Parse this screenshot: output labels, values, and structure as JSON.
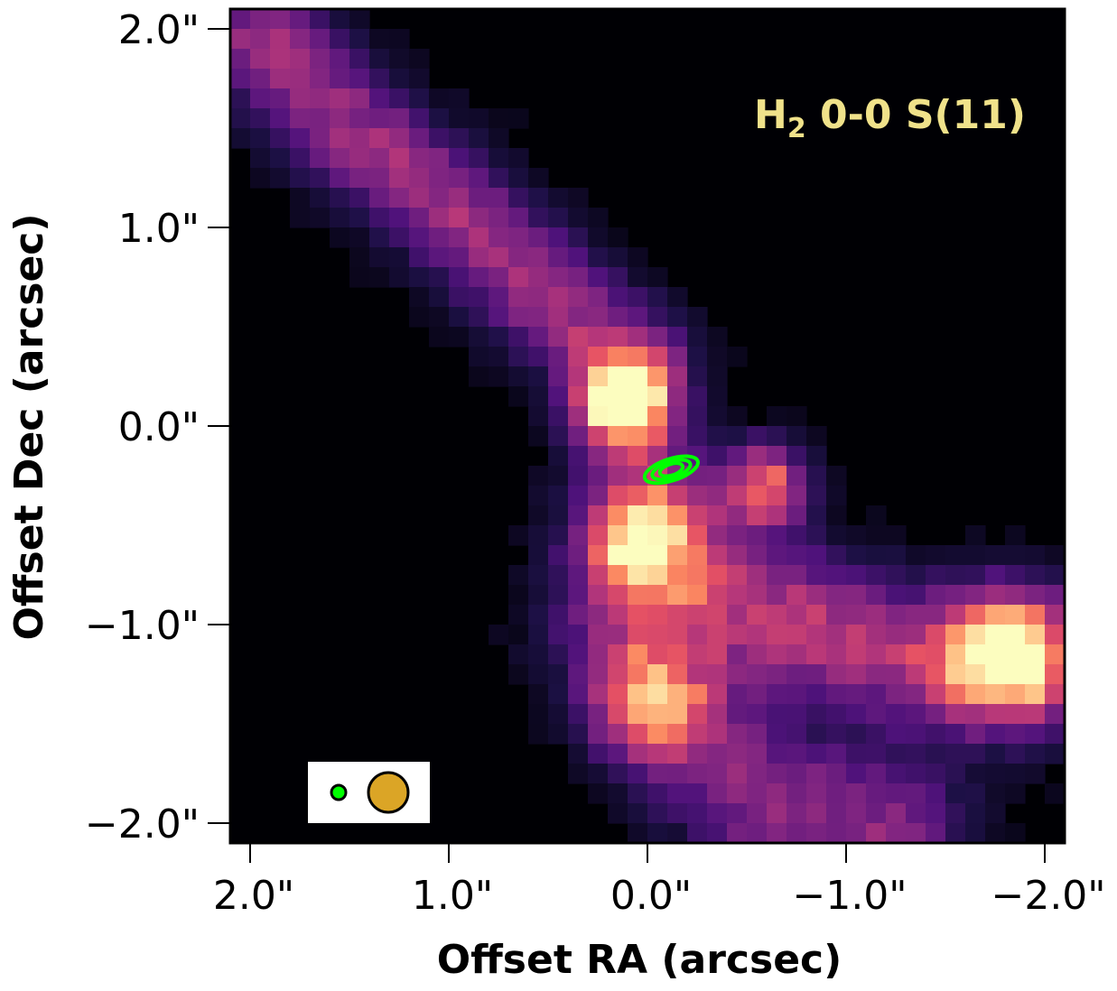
{
  "chart_data": {
    "type": "heatmap",
    "line_label": {
      "main": "H",
      "sub": "2",
      "rest": " 0-0 S(11)"
    },
    "xlabel": "Offset RA (arcsec)",
    "ylabel": "Offset Dec (arcsec)",
    "xlim": [
      2.1,
      -2.1
    ],
    "ylim": [
      -2.1,
      2.1
    ],
    "x_ticks": [
      2.0,
      1.0,
      0.0,
      -1.0,
      -2.0
    ],
    "x_tick_labels": [
      "2.0\"",
      "1.0\"",
      "0.0\"",
      "−1.0\"",
      "−2.0\""
    ],
    "y_ticks": [
      2.0,
      1.0,
      0.0,
      -1.0,
      -2.0
    ],
    "y_tick_labels": [
      "2.0\"",
      "1.0\"",
      "0.0\"",
      "−1.0\"",
      "−2.0\""
    ],
    "colormap": "magma",
    "grid": false,
    "emission_components": [
      {
        "name": "upper-outflow-lobe",
        "path": [
          [
            1.95,
            1.95
          ],
          [
            1.5,
            1.5
          ],
          [
            1.0,
            1.1
          ],
          [
            0.5,
            0.65
          ],
          [
            0.1,
            0.3
          ]
        ],
        "width": 0.42,
        "peak": 0.45
      },
      {
        "name": "lower-outflow-lobe",
        "path": [
          [
            0.0,
            -0.4
          ],
          [
            -0.3,
            -0.8
          ],
          [
            -0.8,
            -1.0
          ],
          [
            -1.3,
            -1.15
          ],
          [
            -1.9,
            -1.2
          ]
        ],
        "width": 0.5,
        "peak": 0.5
      },
      {
        "name": "lower-cavity",
        "path": [
          [
            0.1,
            -1.0
          ],
          [
            -0.2,
            -1.5
          ],
          [
            -0.6,
            -1.9
          ],
          [
            -1.2,
            -2.05
          ]
        ],
        "width": 0.55,
        "peak": 0.4
      },
      {
        "name": "central-knot",
        "center": [
          0.12,
          0.12
        ],
        "sigma": 0.16,
        "peak": 1.0
      },
      {
        "name": "jet-knot-se",
        "center": [
          -0.6,
          -0.3
        ],
        "sigma": 0.14,
        "peak": 0.7
      },
      {
        "name": "south-knot",
        "center": [
          0.05,
          -0.6
        ],
        "sigma": 0.16,
        "peak": 0.72
      },
      {
        "name": "sw-knot",
        "center": [
          -1.8,
          -1.15
        ],
        "sigma": 0.2,
        "peak": 0.85
      },
      {
        "name": "lower-knot",
        "center": [
          0.0,
          -1.4
        ],
        "sigma": 0.18,
        "peak": 0.6
      }
    ],
    "continuum_contours": {
      "center": [
        -0.12,
        -0.22
      ],
      "color": "#00ff00",
      "levels": [
        {
          "rx": 0.14,
          "ry": 0.055
        },
        {
          "rx": 0.1,
          "ry": 0.04
        },
        {
          "rx": 0.06,
          "ry": 0.028
        }
      ],
      "angle_deg": -18
    },
    "beam_inset": {
      "continuum_beam_color": "#00ff00",
      "psf_beam_color": "#dba526"
    },
    "colors": {
      "line_label": "#f0e28a",
      "background": "#000004"
    }
  }
}
